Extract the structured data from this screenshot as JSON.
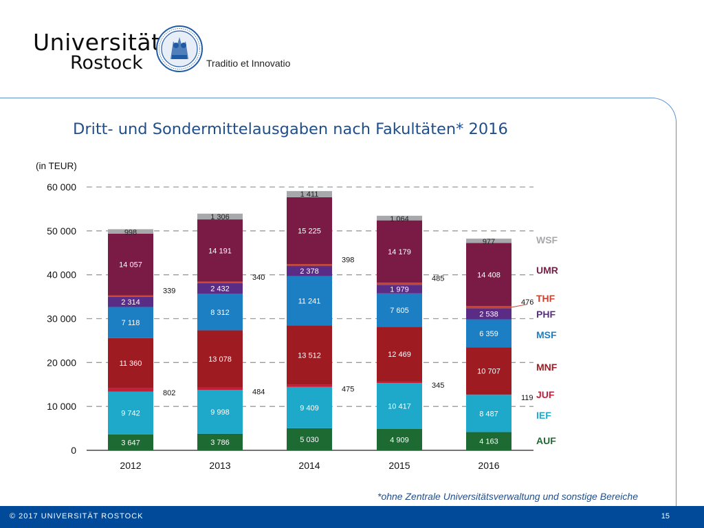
{
  "header": {
    "university": "Universität",
    "city": "Rostock",
    "motto": "Traditio et Innovatio"
  },
  "slide": {
    "title": "Dritt- und Sondermittelausgaben nach Fakultäten* 2016",
    "unit": "(in TEUR)",
    "footnote": "*ohne Zentrale Universitätsverwaltung und sonstige Bereiche"
  },
  "footer": {
    "copyright": "© 2017 UNIVERSITÄT ROSTOCK",
    "page": "15"
  },
  "chart_data": {
    "type": "bar",
    "stacked": true,
    "categories": [
      "2012",
      "2013",
      "2014",
      "2015",
      "2016"
    ],
    "ylim": [
      0,
      60000
    ],
    "yticks": [
      0,
      10000,
      20000,
      30000,
      40000,
      50000,
      60000
    ],
    "ytick_labels": [
      "0",
      "10 000",
      "20 000",
      "30 000",
      "40 000",
      "50 000",
      "60 000"
    ],
    "grid": "dashed horizontal",
    "legend_position": "right",
    "series": [
      {
        "name": "AUF",
        "color": "#1d6b33",
        "values": [
          3647,
          3786,
          5030,
          4909,
          4163
        ],
        "labels": [
          "3 647",
          "3 786",
          "5 030",
          "4 909",
          "4 163"
        ]
      },
      {
        "name": "IEF",
        "color": "#1ea8c9",
        "values": [
          9742,
          9998,
          9409,
          10417,
          8487
        ],
        "labels": [
          "9 742",
          "9 998",
          "9 409",
          "10 417",
          "8 487"
        ]
      },
      {
        "name": "JUF",
        "color": "#c41f3a",
        "values": [
          802,
          484,
          475,
          345,
          119
        ],
        "labels": [
          "802",
          "484",
          "475",
          "345",
          "119"
        ]
      },
      {
        "name": "MNF",
        "color": "#9e1b22",
        "values": [
          11360,
          13078,
          13512,
          12469,
          10707
        ],
        "labels": [
          "11 360",
          "13 078",
          "13 512",
          "12 469",
          "10 707"
        ]
      },
      {
        "name": "MSF",
        "color": "#1c7fc4",
        "values": [
          7118,
          8312,
          11241,
          7605,
          6359
        ],
        "labels": [
          "7 118",
          "8 312",
          "11 241",
          "7 605",
          "6 359"
        ]
      },
      {
        "name": "PHF",
        "color": "#5b2c86",
        "values": [
          2314,
          2432,
          2378,
          1979,
          2538
        ],
        "labels": [
          "2 314",
          "2 432",
          "2 378",
          "1 979",
          "2 538"
        ]
      },
      {
        "name": "THF",
        "color": "#c8432e",
        "values": [
          339,
          340,
          398,
          485,
          476
        ],
        "labels": [
          "339",
          "340",
          "398",
          "485",
          "476"
        ]
      },
      {
        "name": "UMR",
        "color": "#7a1b46",
        "values": [
          14057,
          14191,
          15225,
          14179,
          14408
        ],
        "labels": [
          "14 057",
          "14 191",
          "15 225",
          "14 179",
          "14 408"
        ]
      },
      {
        "name": "WSF",
        "color": "#a6a8ab",
        "values": [
          998,
          1306,
          1411,
          1064,
          977
        ],
        "labels": [
          "998",
          "1 306",
          "1 411",
          "1 064",
          "977"
        ]
      }
    ]
  }
}
